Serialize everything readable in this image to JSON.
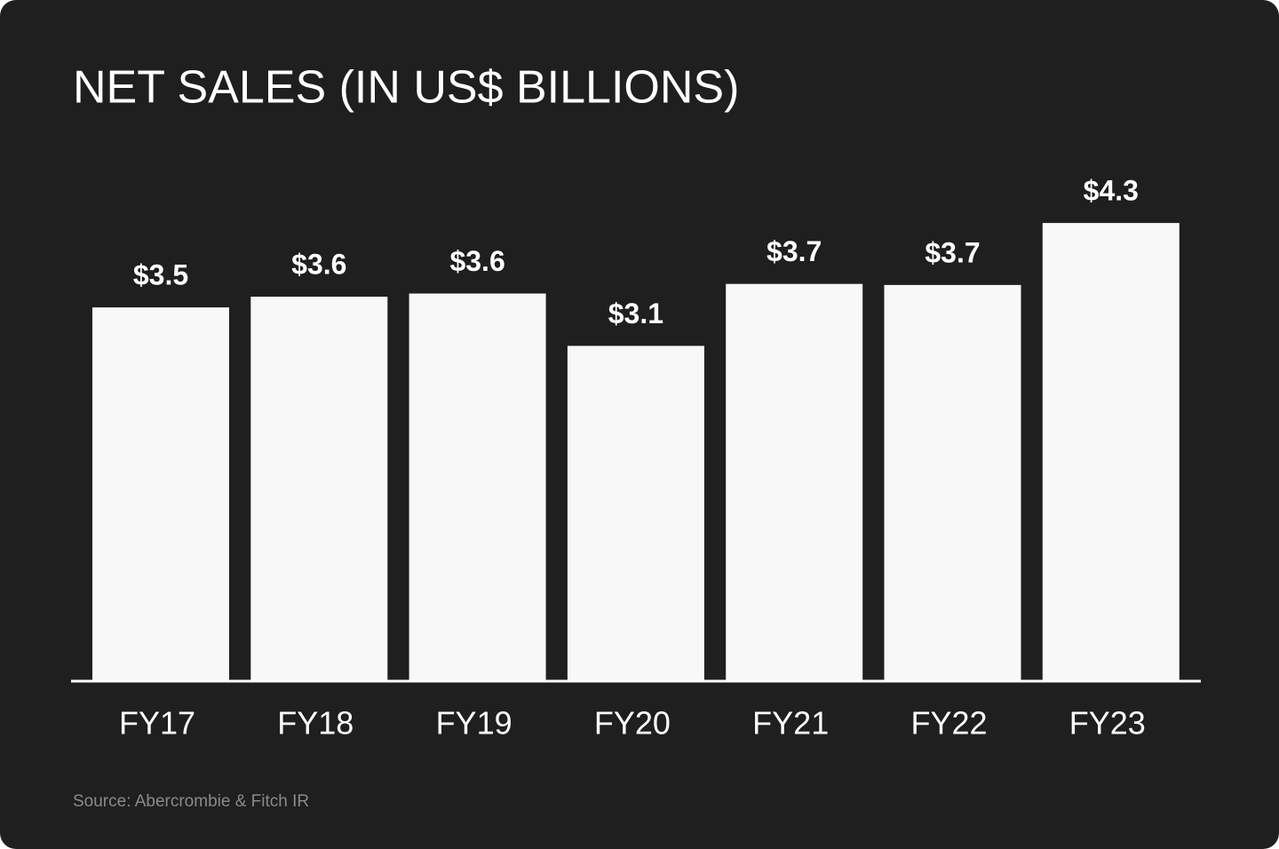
{
  "chart_data": {
    "type": "bar",
    "title": "NET SALES (IN US$ BILLIONS)",
    "categories": [
      "FY17",
      "FY18",
      "FY19",
      "FY20",
      "FY21",
      "FY22",
      "FY23"
    ],
    "values": [
      3.49,
      3.59,
      3.62,
      3.13,
      3.71,
      3.7,
      4.28
    ],
    "value_labels": [
      "$3.5",
      "$3.6",
      "$3.6",
      "$3.1",
      "$3.7",
      "$3.7",
      "$4.3"
    ],
    "color": "#f8f8f8",
    "source": "Source: Abercrombie & Fitch IR"
  }
}
